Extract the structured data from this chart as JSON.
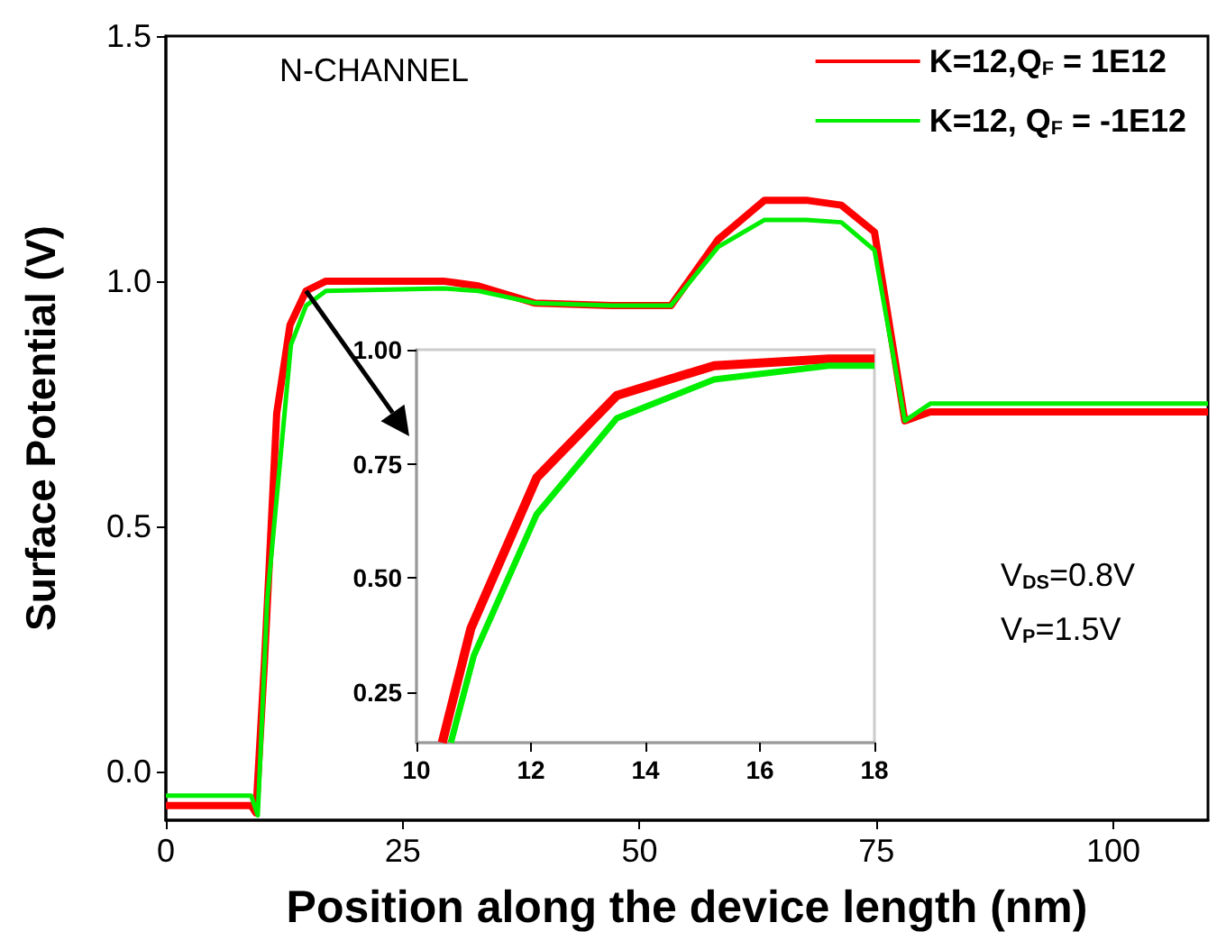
{
  "chart_data": [
    {
      "type": "line",
      "xlabel": "Position along the device length (nm)",
      "ylabel": "Surface Potential (V)",
      "xlim": [
        0,
        110
      ],
      "xticks": [
        0,
        25,
        50,
        75,
        100
      ],
      "ylim": [
        -0.1,
        1.5
      ],
      "yticks": [
        {
          "value": 0,
          "label": "0.0"
        },
        {
          "value": 0.5,
          "label": "0.5"
        },
        {
          "value": 1,
          "label": "1.0"
        },
        {
          "value": 1.5,
          "label": "1.5"
        }
      ],
      "legend": "top right",
      "grid": false,
      "marker": "none",
      "line_style": "solid",
      "annotations": [
        "N-CHANNEL",
        "V$_{DS}$=0.8V",
        "V$_{P}$=1.5V"
      ],
      "series": [
        {
          "name": "K=12,Q$_{F}$ = 1E12",
          "color": "#ff0000",
          "x": [
            0,
            9,
            9.5,
            10.4,
            11.7,
            13.1,
            14.8,
            16.9,
            29.3,
            33,
            39,
            47,
            53.3,
            58.3,
            63.2,
            67.6,
            71.3,
            74.8,
            78,
            80.7,
            110
          ],
          "values": [
            -0.07,
            -0.07,
            -0.085,
            0.22,
            0.73,
            0.91,
            0.98,
            1.0,
            1.0,
            0.99,
            0.955,
            0.95,
            0.95,
            1.085,
            1.165,
            1.165,
            1.155,
            1.1,
            0.715,
            0.733,
            0.733
          ]
        },
        {
          "name": "K=12, Q$_{F}$ = -1E12",
          "color": "#00ee00",
          "x": [
            0,
            9,
            9.7,
            10.7,
            13.2,
            14.8,
            16.9,
            29.3,
            33,
            39,
            47,
            53.3,
            58.3,
            63.2,
            67.6,
            71.3,
            74.8,
            78,
            80.7,
            110
          ],
          "values": [
            -0.05,
            -0.05,
            -0.09,
            0.35,
            0.87,
            0.95,
            0.98,
            0.985,
            0.98,
            0.955,
            0.95,
            0.95,
            1.07,
            1.125,
            1.125,
            1.12,
            1.063,
            0.715,
            0.75,
            0.75
          ]
        }
      ]
    },
    {
      "type": "line",
      "xlim": [
        10,
        18
      ],
      "xticks": [
        10,
        12,
        14,
        16,
        18
      ],
      "ylim": [
        0.14,
        1.0
      ],
      "yticks": [
        {
          "value": 0.25,
          "label": "0.25"
        },
        {
          "value": 0.5,
          "label": "0.50"
        },
        {
          "value": 0.75,
          "label": "0.75"
        },
        {
          "value": 1.0,
          "label": "1.00"
        }
      ],
      "legend": false,
      "grid": false,
      "marker": "none",
      "line_style": "solid",
      "series": [
        {
          "color": "#ff0000",
          "x": [
            10.45,
            10.95,
            12.1,
            13.5,
            15.2,
            17.2,
            18
          ],
          "values": [
            0.14,
            0.39,
            0.72,
            0.9,
            0.965,
            0.98,
            0.98
          ]
        },
        {
          "color": "#00ee00",
          "x": [
            10.6,
            11,
            12.1,
            13.5,
            15.2,
            17.2,
            18
          ],
          "values": [
            0.14,
            0.33,
            0.64,
            0.85,
            0.935,
            0.965,
            0.965
          ]
        }
      ]
    }
  ]
}
